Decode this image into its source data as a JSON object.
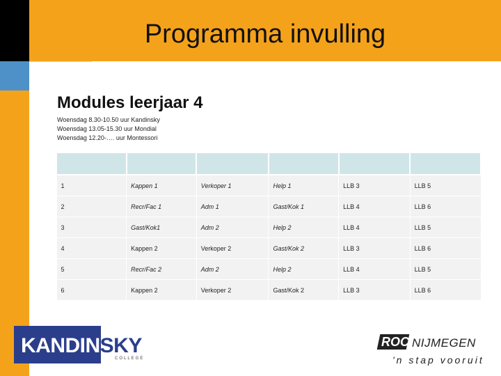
{
  "slide": {
    "title": "Programma invulling",
    "subtitle": "Modules leerjaar 4",
    "lines": [
      "Woensdag 8.30-10.50 uur Kandinsky",
      "Woensdag  13.05-15.30 uur Mondial",
      "Woensdag 12.20-…. uur Montessori"
    ]
  },
  "table": {
    "header": [
      "",
      "",
      "",
      "",
      "",
      ""
    ],
    "rows": [
      [
        "1",
        "Kappen 1",
        "Verkoper 1",
        "Help 1",
        "LLB 3",
        "LLB 5"
      ],
      [
        "2",
        "Recr/Fac 1",
        "Adm 1",
        "Gast/Kok 1",
        "LLB 4",
        "LLB 6"
      ],
      [
        "3",
        "Gast/Kok1",
        "Adm 2",
        "Help 2",
        "LLB 4",
        "LLB 5"
      ],
      [
        "4",
        "Kappen 2",
        "Verkoper 2",
        "Gast/Kok 2",
        "LLB 3",
        "LLB 6"
      ],
      [
        "5",
        "Recr/Fac 2",
        "Adm 2",
        "Help 2",
        "LLB 4",
        "LLB 5"
      ],
      [
        "6",
        "Kappen 2",
        "Verkoper 2",
        "Gast/Kok 2",
        "LLB 3",
        "LLB 6"
      ]
    ]
  },
  "logos": {
    "kandinsky": {
      "word_main": "KANDIN",
      "word_tail": "SKY",
      "sub": "COLLEGE"
    },
    "roc": {
      "mark": "ROC",
      "city": "NIJMEGEN",
      "tagline": "'n stap vooruit"
    }
  },
  "colors": {
    "accent_orange": "#f5a21b",
    "accent_blue": "#4d91c8",
    "header_cell": "#d0e5e8",
    "body_cell": "#f2f2f2",
    "kandinsky_blue": "#2b3e8c"
  }
}
